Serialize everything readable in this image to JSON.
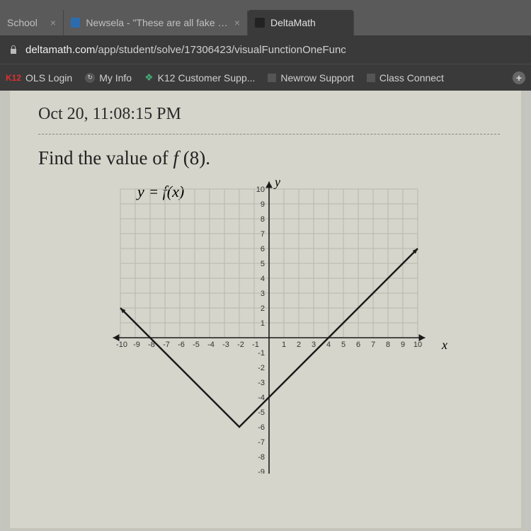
{
  "tabs": {
    "partial": {
      "label": "School"
    },
    "middle": {
      "label": "Newsela - \"These are all fake new"
    },
    "active": {
      "label": "DeltaMath"
    }
  },
  "url": {
    "domain": "deltamath.com",
    "path": "/app/student/solve/17306423/visualFunctionOneFunc"
  },
  "bookmarks": {
    "b1": "OLS Login",
    "b2": "My Info",
    "b3": "K12 Customer Supp...",
    "b4": "Newrow Support",
    "b5": "Class Connect"
  },
  "page": {
    "timestamp": "Oct 20, 11:08:15 PM",
    "question_prefix": "Find the value of ",
    "question_func": "f(8).",
    "equation": "y = f(x)",
    "y_axis_label": "y",
    "x_axis_label": "x"
  },
  "chart": {
    "type": "line",
    "xlim": [
      -10,
      10
    ],
    "ylim_visible": [
      -9,
      10
    ],
    "xtick_step": 1,
    "ytick_step": 1,
    "grid_region_y": [
      0,
      10
    ],
    "background_color": "#d5d5cb",
    "grid_color": "#b8b8ae",
    "axis_color": "#1a1a1a",
    "line_color": "#1a1a1a",
    "line_width": 2.5,
    "x_ticks": [
      -10,
      -9,
      -8,
      -7,
      -6,
      -5,
      -4,
      -3,
      -2,
      -1,
      1,
      2,
      3,
      4,
      5,
      6,
      7,
      8,
      9,
      10
    ],
    "y_ticks_pos": [
      1,
      2,
      3,
      4,
      5,
      6,
      7,
      8,
      9,
      10
    ],
    "y_ticks_neg": [
      -1,
      -2,
      -3,
      -4,
      -5,
      -6,
      -7,
      -8,
      -9
    ],
    "line_points": [
      [
        -10,
        2
      ],
      [
        -8,
        0
      ],
      [
        -2,
        -6
      ],
      [
        3,
        -1
      ],
      [
        10,
        6
      ]
    ],
    "arrow_ends": true,
    "tick_font_size": 11,
    "tick_color": "#333333"
  }
}
